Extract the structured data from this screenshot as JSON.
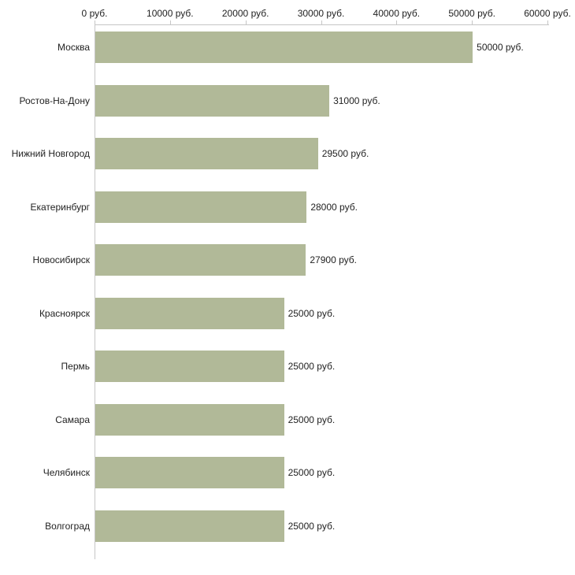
{
  "chart_data": {
    "type": "bar",
    "orientation": "horizontal",
    "title": "",
    "xlabel": "",
    "ylabel": "",
    "unit": "руб.",
    "categories": [
      "Москва",
      "Ростов-На-Дону",
      "Нижний Новгород",
      "Екатеринбург",
      "Новосибирск",
      "Красноярск",
      "Пермь",
      "Самара",
      "Челябинск",
      "Волгоград"
    ],
    "values": [
      50000,
      31000,
      29500,
      28000,
      27900,
      25000,
      25000,
      25000,
      25000,
      25000
    ],
    "value_labels": [
      "50000 руб.",
      "31000 руб.",
      "29500 руб.",
      "28000 руб.",
      "27900 руб.",
      "25000 руб.",
      "25000 руб.",
      "25000 руб.",
      "25000 руб.",
      "25000 руб."
    ],
    "x_ticks": [
      0,
      10000,
      20000,
      30000,
      40000,
      50000,
      60000
    ],
    "x_tick_labels": [
      "0 руб.",
      "10000 руб.",
      "20000 руб.",
      "30000 руб.",
      "40000 руб.",
      "50000 руб.",
      "60000 руб."
    ],
    "xlim": [
      0,
      60000
    ],
    "grid": false,
    "legend": "none",
    "bar_color": "#b1b998",
    "axis_color": "#c6c6c6",
    "text_color": "#222222"
  }
}
